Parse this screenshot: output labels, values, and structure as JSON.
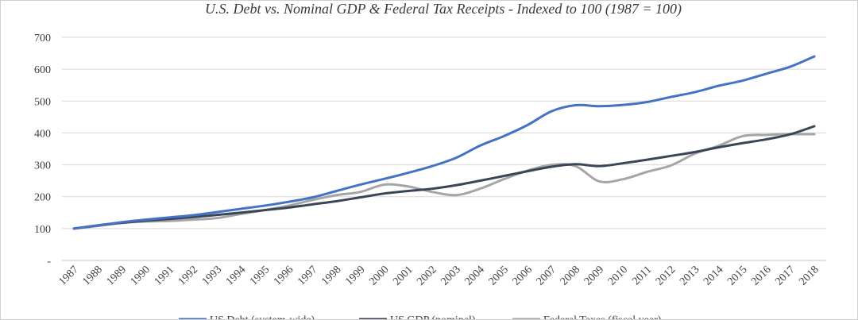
{
  "chart_data": {
    "type": "line",
    "title": "U.S. Debt vs. Nominal GDP & Federal Tax Receipts - Indexed to 100 (1987 = 100)",
    "xlabel": "",
    "ylabel": "",
    "ylim": [
      0,
      700
    ],
    "y_ticks": [
      {
        "value": 0,
        "label": "-"
      },
      {
        "value": 100,
        "label": "100"
      },
      {
        "value": 200,
        "label": "200"
      },
      {
        "value": 300,
        "label": "300"
      },
      {
        "value": 400,
        "label": "400"
      },
      {
        "value": 500,
        "label": "500"
      },
      {
        "value": 600,
        "label": "600"
      },
      {
        "value": 700,
        "label": "700"
      }
    ],
    "grid": true,
    "legend": "bottom",
    "x": [
      "1987",
      "1988",
      "1989",
      "1990",
      "1991",
      "1992",
      "1993",
      "1994",
      "1995",
      "1996",
      "1997",
      "1998",
      "1999",
      "2000",
      "2001",
      "2002",
      "2003",
      "2004",
      "2005",
      "2006",
      "2007",
      "2008",
      "2009",
      "2010",
      "2011",
      "2012",
      "2013",
      "2014",
      "2015",
      "2016",
      "2017",
      "2018"
    ],
    "series": [
      {
        "name": "US Debt (system-wide)",
        "color": "#4472c4",
        "values": [
          100,
          110,
          120,
          128,
          135,
          142,
          152,
          162,
          172,
          184,
          198,
          218,
          238,
          256,
          275,
          296,
          322,
          360,
          390,
          425,
          468,
          487,
          484,
          488,
          497,
          513,
          528,
          548,
          564,
          586,
          608,
          640
        ]
      },
      {
        "name": "US GDP (nominal)",
        "color": "#3b4559",
        "values": [
          100,
          110,
          118,
          125,
          130,
          136,
          143,
          150,
          158,
          166,
          176,
          186,
          198,
          210,
          218,
          225,
          236,
          250,
          265,
          280,
          294,
          302,
          296,
          305,
          316,
          328,
          340,
          355,
          368,
          380,
          396,
          421
        ]
      },
      {
        "name": "Federal Taxes (fiscal year)",
        "color": "#a5a5a5",
        "values": [
          100,
          108,
          118,
          122,
          124,
          128,
          133,
          146,
          158,
          172,
          190,
          205,
          215,
          238,
          232,
          215,
          205,
          225,
          255,
          282,
          300,
          296,
          248,
          255,
          278,
          298,
          335,
          360,
          390,
          394,
          396,
          396
        ]
      }
    ]
  }
}
